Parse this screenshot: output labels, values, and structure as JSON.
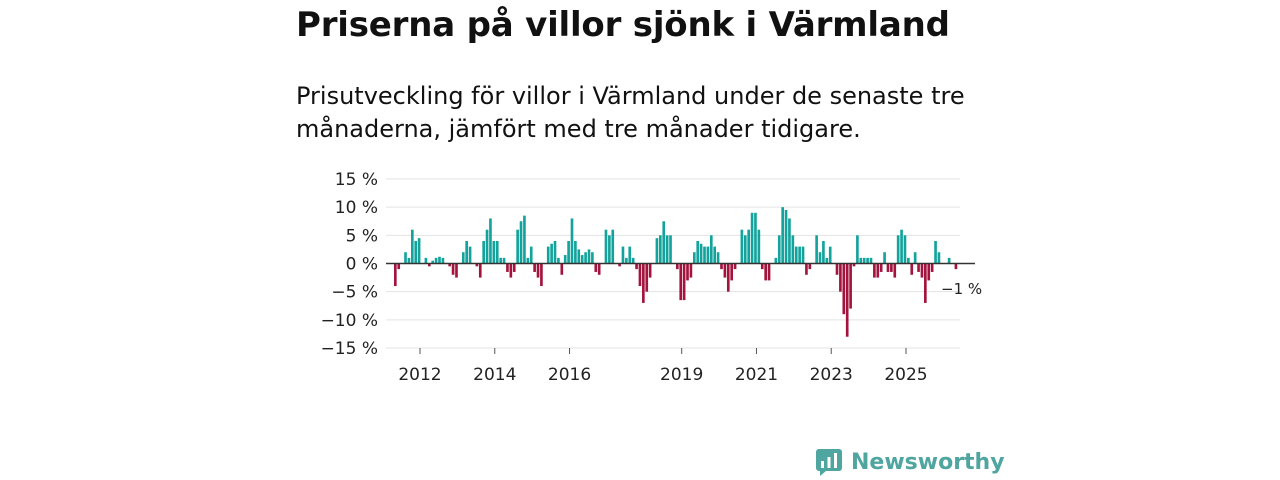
{
  "colors": {
    "positive": "#13a39c",
    "negative": "#a3133d",
    "zero_line": "#333333",
    "grid": "#e3e3e3",
    "brand": "#4fa59f"
  },
  "header": {
    "title": "Priserna på villor sjönk i Värmland",
    "subtitle": "Prisutveckling för villor i Värmland under de senaste tre månaderna, jämfört med tre månader tidigare."
  },
  "chart_data": {
    "type": "bar",
    "title": "Priserna på villor sjönk i Värmland",
    "subtitle": "Prisutveckling för villor i Värmland under de senaste tre månaderna, jämfört med tre månader tidigare.",
    "xlabel": "",
    "ylabel": "",
    "ylim": [
      -15,
      15
    ],
    "y_ticks": [
      15,
      10,
      5,
      0,
      -5,
      -10,
      -15
    ],
    "y_tick_labels": [
      "15 %",
      "10 %",
      "5 %",
      "0 %",
      "−5 %",
      "−10 %",
      "−15 %"
    ],
    "x_start": 2011.25,
    "x_end": 2026.1,
    "x_ticks": [
      2012,
      2014,
      2016,
      2019,
      2021,
      2023,
      2025
    ],
    "x_tick_labels": [
      "2012",
      "2014",
      "2016",
      "2019",
      "2021",
      "2023",
      "2025"
    ],
    "grid": true,
    "series": [
      {
        "name": "Prisutveckling",
        "bar_period": "month",
        "start": "2011-12",
        "values": [
          -4,
          -1,
          0,
          2,
          1,
          6,
          4,
          4.5,
          0,
          1,
          -0.5,
          0.5,
          1,
          1.2,
          1,
          0,
          -0.5,
          -2,
          -2.5,
          0,
          2,
          4,
          3,
          0,
          -0.5,
          -2.5,
          4,
          6,
          8,
          4,
          4,
          1,
          1,
          -1.5,
          -2.5,
          -1.5,
          6,
          7.5,
          8.5,
          1,
          3,
          -1.5,
          -2.5,
          -4,
          0,
          3,
          3.5,
          4,
          1,
          -2,
          1.5,
          4,
          8,
          4,
          2.5,
          1.5,
          2,
          2.5,
          2,
          -1.5,
          -2,
          0,
          6,
          5,
          6,
          0,
          -0.5,
          3,
          1,
          3,
          1,
          -1,
          -4,
          -7,
          -5,
          -2.5,
          0,
          4.5,
          5,
          7.5,
          5,
          5,
          0,
          -1,
          -6.5,
          -6.5,
          -3,
          -2.5,
          2,
          4,
          3.5,
          3,
          3,
          5,
          3,
          2,
          -1,
          -2.5,
          -5,
          -3,
          -1,
          0,
          6,
          5,
          6,
          9,
          9,
          6,
          -1,
          -3,
          -3,
          0,
          1,
          5,
          10,
          9.5,
          8,
          5,
          3,
          3,
          3,
          -2,
          -1,
          0,
          5,
          2,
          4,
          1,
          3,
          0,
          -2,
          -5,
          -9,
          -13,
          -8,
          -0.5,
          5,
          1,
          1,
          1,
          1,
          -2.5,
          -2.5,
          -1.5,
          2,
          -1.5,
          -1.5,
          -2.5,
          5,
          6,
          5,
          1,
          -2,
          2,
          -1.5,
          -2.5,
          -7,
          -3,
          -1.5,
          4,
          2,
          0,
          0,
          1,
          0,
          -1
        ]
      }
    ],
    "annotation": {
      "text": "−1 %",
      "value": -1
    }
  },
  "branding": {
    "name": "Newsworthy"
  }
}
